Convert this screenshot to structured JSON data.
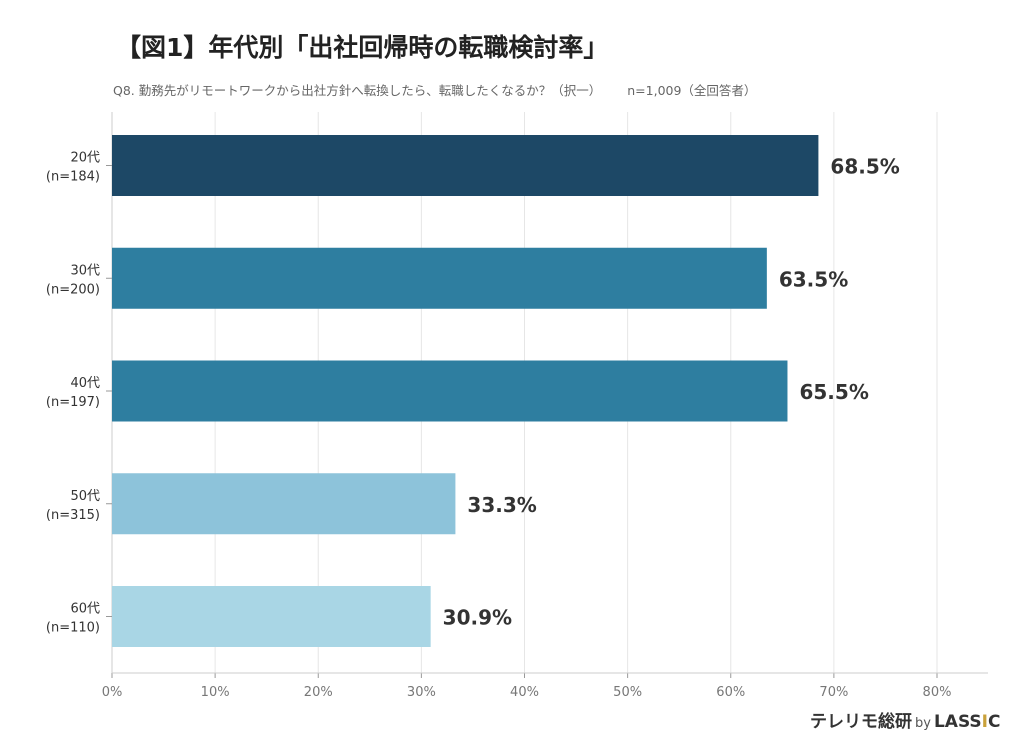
{
  "chart_data": {
    "type": "bar",
    "orientation": "horizontal",
    "title": "【図1】年代別「出社回帰時の転職検討率」",
    "subtitle": "Q8. 勤務先がリモートワークから出社方針へ転換したら、転職したくなるか？（択一）",
    "sample_note": "n=1,009（全回答者）",
    "categories": [
      [
        "20代",
        "(n=184)"
      ],
      [
        "30代",
        "(n=200)"
      ],
      [
        "40代",
        "(n=197)"
      ],
      [
        "50代",
        "(n=315)"
      ],
      [
        "60代",
        "(n=110)"
      ]
    ],
    "values": [
      68.5,
      63.5,
      65.5,
      33.3,
      30.9
    ],
    "data_labels": [
      "68.5%",
      "63.5%",
      "65.5%",
      "33.3%",
      "30.9%"
    ],
    "colors": [
      "#1d4866",
      "#2e7ea0",
      "#2e7ea0",
      "#8dc3da",
      "#a9d6e5"
    ],
    "xlim": [
      0,
      85
    ],
    "xticks": [
      0,
      10,
      20,
      30,
      40,
      50,
      60,
      70,
      80
    ],
    "xtick_labels": [
      "0%",
      "10%",
      "20%",
      "30%",
      "40%",
      "50%",
      "60%",
      "70%",
      "80%"
    ],
    "grid": true
  },
  "logo": {
    "main": "テレリモ総研",
    "by": "by",
    "brand_a": "LASS",
    "brand_i": "I",
    "brand_c": "C"
  }
}
